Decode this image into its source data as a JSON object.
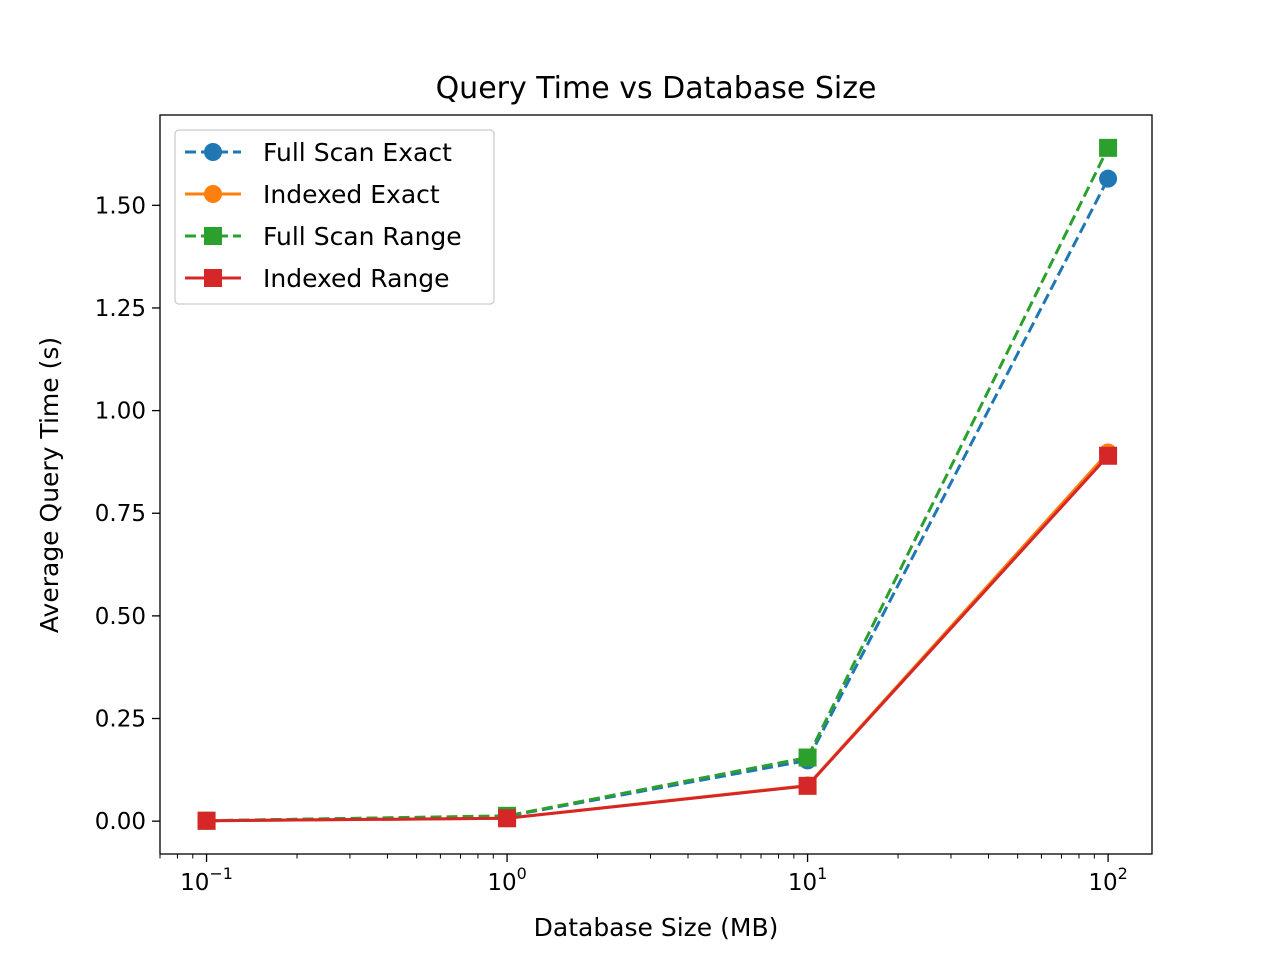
{
  "chart_data": {
    "type": "line",
    "title": "Query Time vs Database Size",
    "xlabel": "Database Size (MB)",
    "ylabel": "Average Query Time (s)",
    "xscale": "log",
    "xlim": [
      0.07,
      140
    ],
    "ylim": [
      -0.08,
      1.72
    ],
    "x_ticks": [
      {
        "value": 0.1,
        "base": "10",
        "exp": "−1"
      },
      {
        "value": 1,
        "base": "10",
        "exp": "0"
      },
      {
        "value": 10,
        "base": "10",
        "exp": "1"
      },
      {
        "value": 100,
        "base": "10",
        "exp": "2"
      }
    ],
    "y_ticks": [
      {
        "value": 0.0,
        "label": "0.00"
      },
      {
        "value": 0.25,
        "label": "0.25"
      },
      {
        "value": 0.5,
        "label": "0.50"
      },
      {
        "value": 0.75,
        "label": "0.75"
      },
      {
        "value": 1.0,
        "label": "1.00"
      },
      {
        "value": 1.25,
        "label": "1.25"
      },
      {
        "value": 1.5,
        "label": "1.50"
      }
    ],
    "x": [
      0.1,
      1,
      10,
      100
    ],
    "legend_position": "upper-left",
    "grid": false,
    "series": [
      {
        "name": "Full Scan Exact",
        "values": [
          0.001,
          0.012,
          0.148,
          1.565
        ],
        "color": "#1f77b4",
        "dashed": true,
        "marker": "circle"
      },
      {
        "name": "Indexed Exact",
        "values": [
          0.001,
          0.007,
          0.087,
          0.898
        ],
        "color": "#ff7f0e",
        "dashed": false,
        "marker": "circle"
      },
      {
        "name": "Full Scan Range",
        "values": [
          0.001,
          0.013,
          0.155,
          1.64
        ],
        "color": "#2ca02c",
        "dashed": true,
        "marker": "square"
      },
      {
        "name": "Indexed Range",
        "values": [
          0.001,
          0.007,
          0.086,
          0.89
        ],
        "color": "#d62728",
        "dashed": false,
        "marker": "square"
      }
    ]
  }
}
